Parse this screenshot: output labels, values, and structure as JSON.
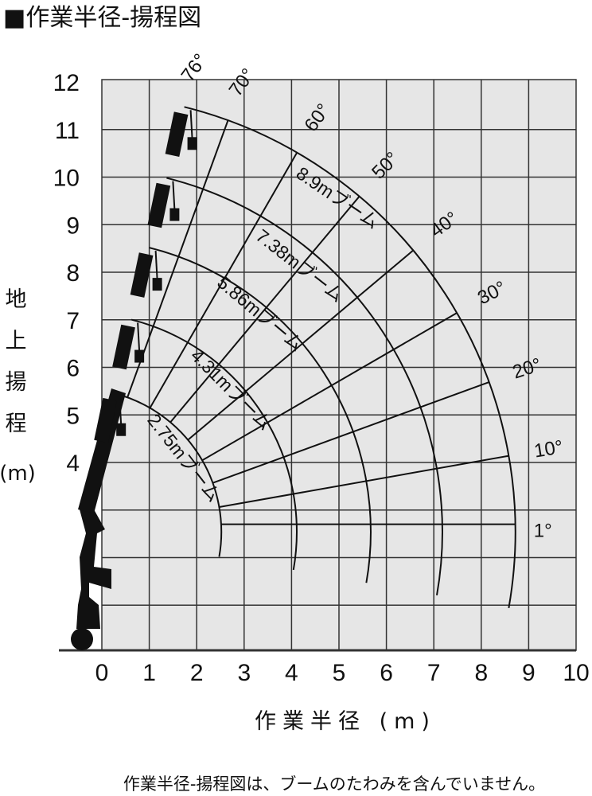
{
  "title": "■作業半径-揚程図",
  "x_axis": {
    "label": "作業半径 (m)",
    "ticks": [
      0,
      1,
      2,
      3,
      4,
      5,
      6,
      7,
      8,
      9,
      10
    ]
  },
  "y_axis": {
    "label_chars": [
      "地",
      "上",
      "揚",
      "程"
    ],
    "unit": "(m)",
    "ticks": [
      4,
      5,
      6,
      7,
      8,
      9,
      10,
      11,
      12
    ]
  },
  "booms": [
    "2.75mブーム",
    "4.31mブーム",
    "5.86mブーム",
    "7.38mブーム",
    "8.9mブーム"
  ],
  "angles": [
    "1°",
    "10°",
    "20°",
    "30°",
    "40°",
    "50°",
    "60°",
    "70°",
    "76°"
  ],
  "footnote": "作業半径-揚程図は、ブームのたわみを含んでいません。"
}
